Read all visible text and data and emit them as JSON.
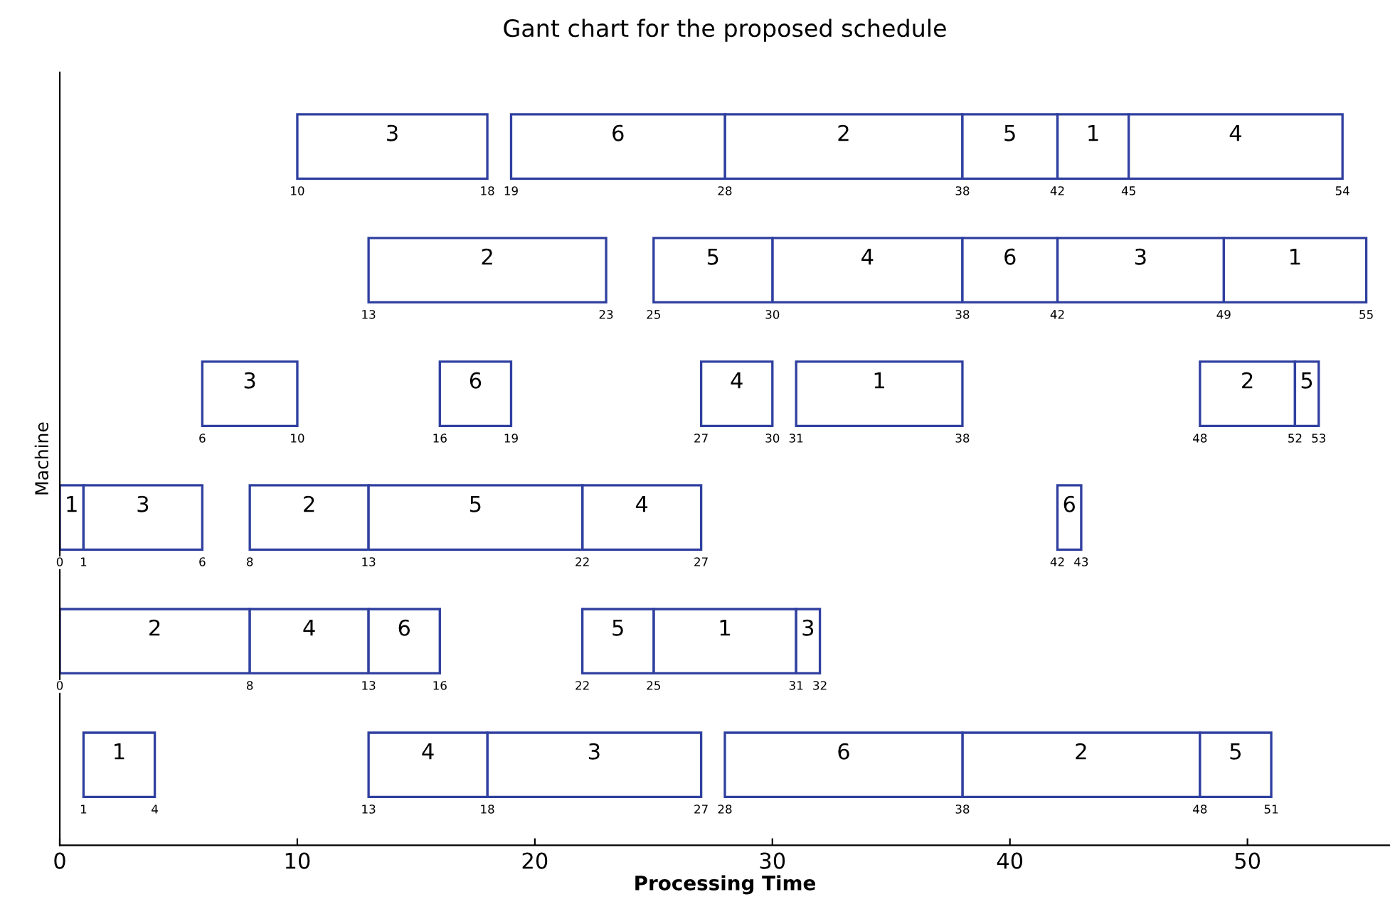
{
  "chart_data": {
    "type": "bar",
    "orientation": "horizontal",
    "title": "Gant chart for the proposed schedule",
    "xlabel": "Processing Time",
    "ylabel": "Machine",
    "categories": [
      null,
      null,
      null,
      null,
      null,
      null
    ],
    "series": [
      {
        "name": "1",
        "color": "#3040a0",
        "base": [
          42,
          49,
          31,
          0,
          25,
          1
        ],
        "values": [
          3,
          6,
          7,
          1,
          6,
          3
        ]
      },
      {
        "name": "2",
        "color": "#3040a0",
        "base": [
          28,
          13,
          48,
          8,
          0,
          38
        ],
        "values": [
          10,
          10,
          4,
          5,
          8,
          10
        ]
      },
      {
        "name": "3",
        "color": "#3040a0",
        "base": [
          10,
          42,
          6,
          1,
          31,
          18
        ],
        "values": [
          8,
          7,
          4,
          5,
          1,
          9
        ]
      },
      {
        "name": "4",
        "color": "#3040a0",
        "base": [
          45,
          30,
          27,
          22,
          8,
          13
        ],
        "values": [
          9,
          8,
          3,
          5,
          5,
          5
        ]
      },
      {
        "name": "5",
        "color": "#3040a0",
        "base": [
          38,
          25,
          52,
          13,
          22,
          48
        ],
        "values": [
          4,
          5,
          1,
          9,
          3,
          3
        ]
      },
      {
        "name": "6",
        "color": "#3040a0",
        "base": [
          19,
          38,
          16,
          42,
          13,
          28
        ],
        "values": [
          9,
          4,
          3,
          1,
          3,
          10
        ]
      }
    ],
    "annotations": [
      "10",
      "18",
      "19",
      "28",
      "38",
      "42",
      "45",
      "54",
      "13",
      "23",
      "25",
      "30",
      "38",
      "42",
      "49",
      "55",
      "6",
      "10",
      "16",
      "19",
      "27",
      "30",
      "31",
      "38",
      "48",
      "52",
      "53",
      "0",
      "1",
      "6",
      "8",
      "13",
      "22",
      "27",
      "42",
      "43",
      "0",
      "8",
      "13",
      "16",
      "22",
      "25",
      "31",
      "32",
      "1",
      "4",
      "13",
      "18",
      "27",
      "28",
      "38",
      "48",
      "51"
    ],
    "xlim": [
      0,
      56
    ],
    "xticks": [
      0,
      10,
      20,
      30,
      40,
      50
    ],
    "tick_labels": "x",
    "grid": false,
    "legend": false
  }
}
